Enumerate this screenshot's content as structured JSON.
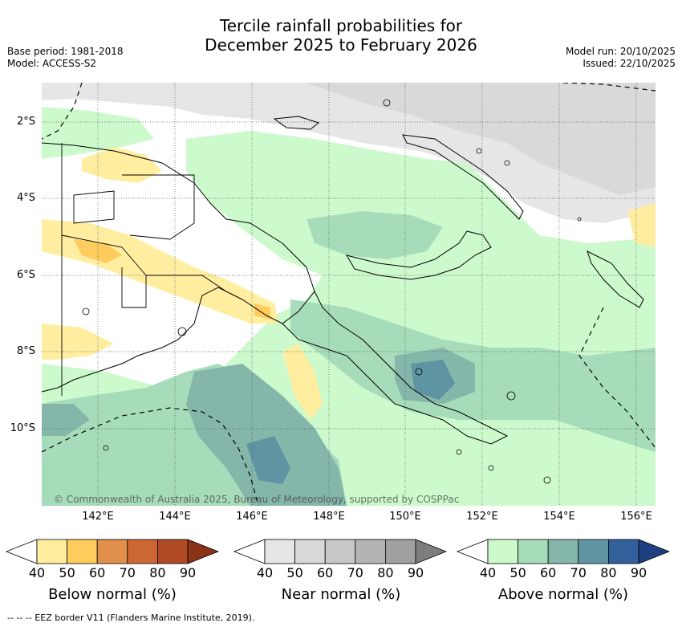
{
  "title_line1": "Tercile rainfall probabilities for",
  "title_line2": "December 2025 to February 2026",
  "base_period": "Base period: 1981-2018",
  "model": "Model: ACCESS-S2",
  "model_run": "Model run: 20/10/2025",
  "issued": "Issued: 22/10/2025",
  "copyright": "© Commonwealth of Australia 2025, Bureau of Meteorology, supported by COSPPac",
  "lat_labels": [
    "2°S",
    "4°S",
    "6°S",
    "8°S",
    "10°S"
  ],
  "lon_labels": [
    "142°E",
    "144°E",
    "146°E",
    "148°E",
    "150°E",
    "152°E",
    "154°E",
    "156°E"
  ],
  "legends": [
    {
      "title": "Below normal (%)",
      "ticks": [
        "40",
        "50",
        "60",
        "70",
        "80",
        "90"
      ],
      "colors": [
        "#ffeda0",
        "#fecc5c",
        "#e0904a",
        "#cc6633",
        "#b04a26",
        "#8a3216"
      ]
    },
    {
      "title": "Near normal (%)",
      "ticks": [
        "40",
        "50",
        "60",
        "70",
        "80",
        "90"
      ],
      "colors": [
        "#e6e6e6",
        "#d9d9d9",
        "#c8c8c8",
        "#b4b4b4",
        "#a0a0a0",
        "#7d7d7d"
      ]
    },
    {
      "title": "Above normal (%)",
      "ticks": [
        "40",
        "50",
        "60",
        "70",
        "80",
        "90"
      ],
      "colors": [
        "#ccfacc",
        "#a6dcb9",
        "#84b7aa",
        "#5f94a2",
        "#31609a",
        "#1e3f80"
      ]
    }
  ],
  "footnote": "--  --  -- EEZ border V11 (Flanders Marine Institute, 2019)."
}
